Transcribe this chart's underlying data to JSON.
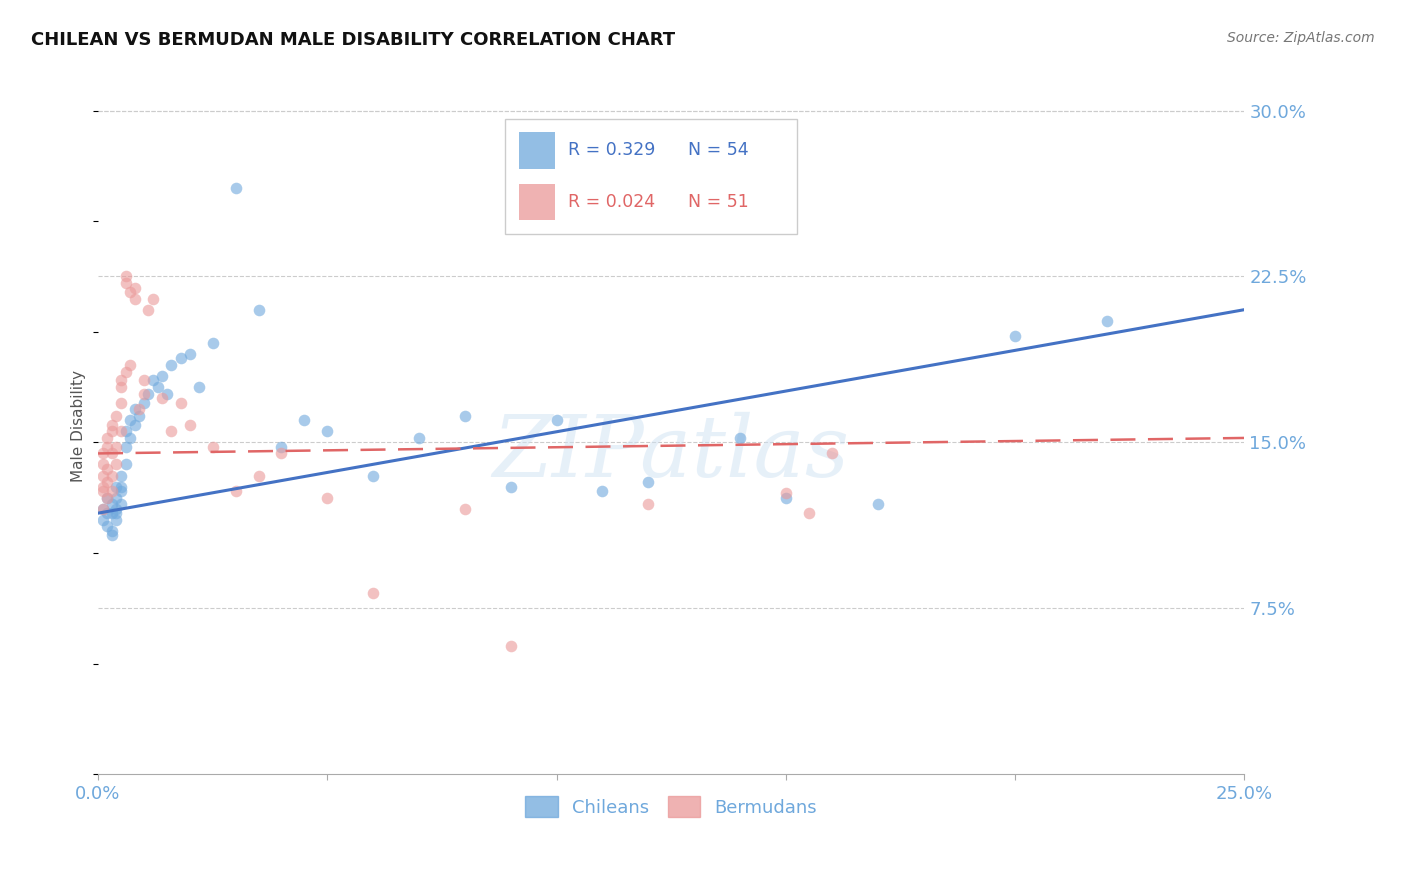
{
  "title": "CHILEAN VS BERMUDAN MALE DISABILITY CORRELATION CHART",
  "source": "Source: ZipAtlas.com",
  "ylabel": "Male Disability",
  "right_yticks": [
    "30.0%",
    "22.5%",
    "15.0%",
    "7.5%"
  ],
  "right_ytick_vals": [
    0.3,
    0.225,
    0.15,
    0.075
  ],
  "watermark": "ZIPatlas",
  "legend_chileans_R": 0.329,
  "legend_chileans_N": 54,
  "legend_bermudans_R": 0.024,
  "legend_bermudans_N": 51,
  "chileans_color": "#6fa8dc",
  "bermudans_color": "#ea9999",
  "chile_line_color": "#4472c4",
  "bermuda_line_color": "#e06666",
  "xlim": [
    0.0,
    0.25
  ],
  "ylim": [
    0.0,
    0.315
  ],
  "scatter_alpha": 0.6,
  "scatter_size": 70,
  "grid_color": "#cccccc",
  "background_color": "#ffffff",
  "title_fontsize": 13,
  "tick_label_color": "#6fa8dc",
  "chileans_x": [
    0.001,
    0.001,
    0.002,
    0.002,
    0.002,
    0.003,
    0.003,
    0.003,
    0.003,
    0.004,
    0.004,
    0.004,
    0.004,
    0.004,
    0.005,
    0.005,
    0.005,
    0.005,
    0.006,
    0.006,
    0.006,
    0.007,
    0.007,
    0.008,
    0.008,
    0.009,
    0.01,
    0.011,
    0.012,
    0.013,
    0.014,
    0.015,
    0.016,
    0.018,
    0.02,
    0.022,
    0.025,
    0.03,
    0.035,
    0.04,
    0.045,
    0.05,
    0.06,
    0.07,
    0.08,
    0.09,
    0.1,
    0.11,
    0.12,
    0.14,
    0.15,
    0.17,
    0.2,
    0.22
  ],
  "chileans_y": [
    0.12,
    0.115,
    0.118,
    0.112,
    0.125,
    0.11,
    0.118,
    0.108,
    0.122,
    0.115,
    0.12,
    0.125,
    0.13,
    0.118,
    0.128,
    0.135,
    0.122,
    0.13,
    0.14,
    0.148,
    0.155,
    0.152,
    0.16,
    0.158,
    0.165,
    0.162,
    0.168,
    0.172,
    0.178,
    0.175,
    0.18,
    0.172,
    0.185,
    0.188,
    0.19,
    0.175,
    0.195,
    0.265,
    0.21,
    0.148,
    0.16,
    0.155,
    0.135,
    0.152,
    0.162,
    0.13,
    0.16,
    0.128,
    0.132,
    0.152,
    0.125,
    0.122,
    0.198,
    0.205
  ],
  "bermudans_x": [
    0.001,
    0.001,
    0.001,
    0.001,
    0.001,
    0.001,
    0.002,
    0.002,
    0.002,
    0.002,
    0.002,
    0.003,
    0.003,
    0.003,
    0.003,
    0.003,
    0.004,
    0.004,
    0.004,
    0.005,
    0.005,
    0.005,
    0.005,
    0.006,
    0.006,
    0.006,
    0.007,
    0.007,
    0.008,
    0.008,
    0.009,
    0.01,
    0.01,
    0.011,
    0.012,
    0.014,
    0.016,
    0.018,
    0.02,
    0.025,
    0.03,
    0.035,
    0.04,
    0.05,
    0.06,
    0.08,
    0.09,
    0.12,
    0.15,
    0.155,
    0.16
  ],
  "bermudans_y": [
    0.128,
    0.13,
    0.135,
    0.14,
    0.145,
    0.12,
    0.148,
    0.138,
    0.152,
    0.125,
    0.132,
    0.155,
    0.145,
    0.158,
    0.135,
    0.128,
    0.162,
    0.148,
    0.14,
    0.168,
    0.155,
    0.175,
    0.178,
    0.225,
    0.222,
    0.182,
    0.218,
    0.185,
    0.22,
    0.215,
    0.165,
    0.172,
    0.178,
    0.21,
    0.215,
    0.17,
    0.155,
    0.168,
    0.158,
    0.148,
    0.128,
    0.135,
    0.145,
    0.125,
    0.082,
    0.12,
    0.058,
    0.122,
    0.127,
    0.118,
    0.145
  ]
}
